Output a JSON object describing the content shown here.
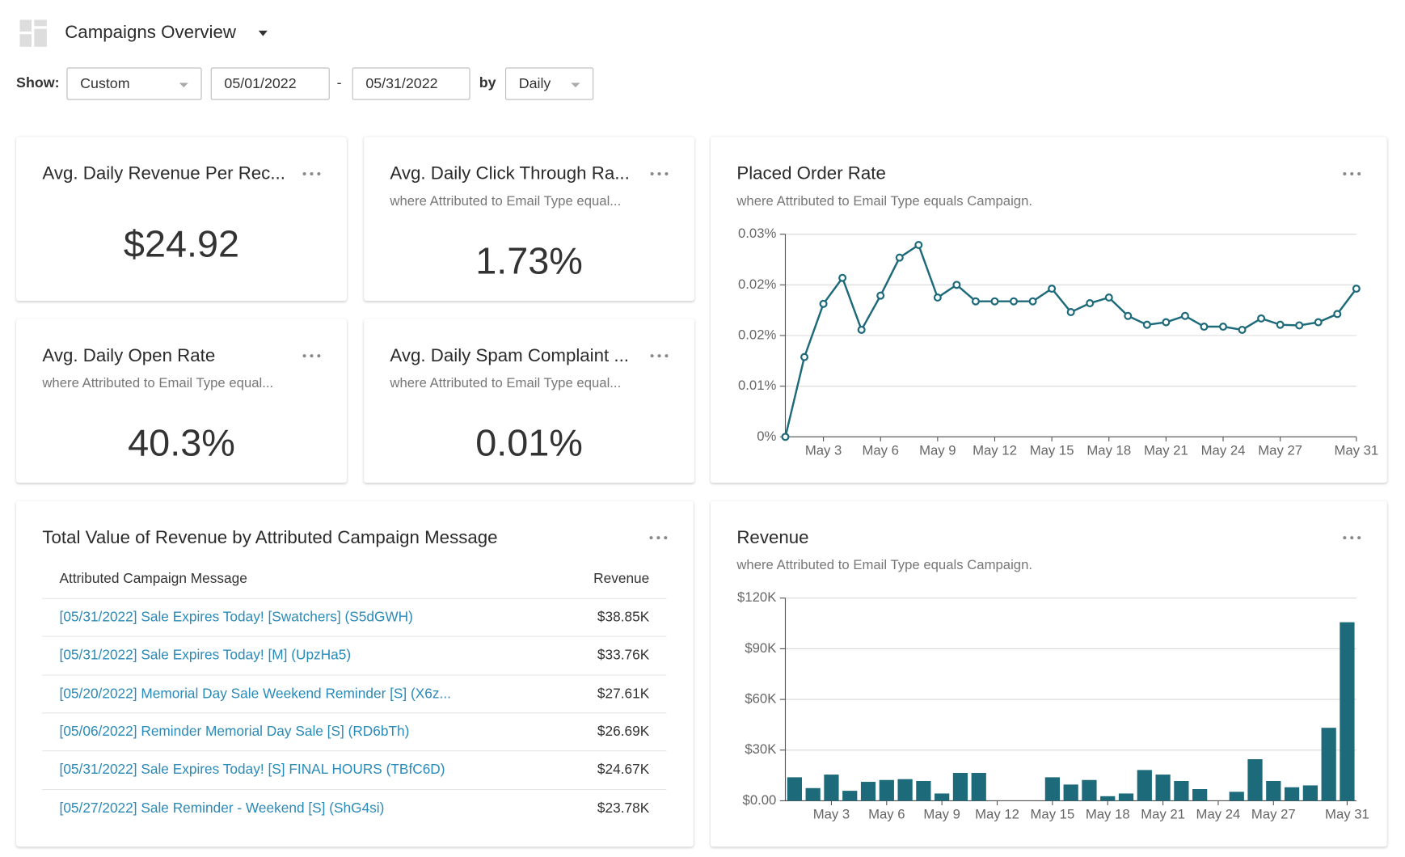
{
  "header": {
    "title": "Campaigns Overview"
  },
  "filters": {
    "show_label": "Show:",
    "range": "Custom",
    "start": "05/01/2022",
    "separator": "-",
    "end": "05/31/2022",
    "by_label": "by",
    "interval": "Daily"
  },
  "kpis": [
    {
      "title": "Avg. Daily Revenue Per Rec...",
      "value": "$24.92"
    },
    {
      "title": "Avg. Daily Click Through Ra...",
      "subtitle": "where Attributed to Email Type equal...",
      "value": "1.73%"
    },
    {
      "title": "Avg. Daily Open Rate",
      "subtitle": "where Attributed to Email Type equal...",
      "value": "40.3%"
    },
    {
      "title": "Avg. Daily Spam Complaint ...",
      "subtitle": "where Attributed to Email Type equal...",
      "value": "0.01%"
    }
  ],
  "table": {
    "title": "Total Value of Revenue by Attributed Campaign Message",
    "columns": [
      "Attributed Campaign Message",
      "Revenue"
    ],
    "rows": [
      [
        "[05/31/2022] Sale Expires Today! [Swatchers] (S5dGWH)",
        "$38.85K"
      ],
      [
        "[05/31/2022] Sale Expires Today! [M] (UpzHa5)",
        "$33.76K"
      ],
      [
        "[05/20/2022] Memorial Day Sale Weekend Reminder [S] (X6z...",
        "$27.61K"
      ],
      [
        "[05/06/2022] Reminder Memorial Day Sale [S] (RD6bTh)",
        "$26.69K"
      ],
      [
        "[05/31/2022] Sale Expires Today! [S] FINAL HOURS (TBfC6D)",
        "$24.67K"
      ],
      [
        "[05/27/2022] Sale Reminder - Weekend [S] (ShG4si)",
        "$23.78K"
      ]
    ]
  },
  "chart_data": [
    {
      "type": "line",
      "title": "Placed Order Rate",
      "subtitle": "where Attributed to Email Type equals Campaign.",
      "categories": [
        null,
        null,
        "May 3",
        null,
        null,
        "May 6",
        null,
        null,
        "May 9",
        null,
        null,
        "May 12",
        null,
        null,
        "May 15",
        null,
        null,
        "May 18",
        null,
        null,
        "May 21",
        null,
        null,
        "May 24",
        null,
        null,
        "May 27",
        null,
        null,
        null,
        "May 31"
      ],
      "values": [
        0,
        0.0126,
        0.021,
        0.0251,
        0.0169,
        0.0223,
        0.0283,
        0.0303,
        0.022,
        0.024,
        0.0214,
        0.0214,
        0.0214,
        0.0214,
        0.0234,
        0.0197,
        0.0211,
        0.022,
        0.0191,
        0.0177,
        0.0181,
        0.0191,
        0.0174,
        0.0174,
        0.0169,
        0.0187,
        0.0177,
        0.0176,
        0.0181,
        0.0194,
        0.0234
      ],
      "color": "#1d6a7a",
      "ylim": [
        0,
        0.032
      ],
      "yticks": [
        {
          "value": 0,
          "label": "0%"
        },
        {
          "value": 0.008,
          "label": "0.01%"
        },
        {
          "value": 0.016,
          "label": "0.02%"
        },
        {
          "value": 0.024,
          "label": "0.02%"
        },
        {
          "value": 0.032,
          "label": "0.03%"
        }
      ],
      "grid": true
    },
    {
      "type": "bar",
      "title": "Revenue",
      "subtitle": "where Attributed to Email Type equals Campaign.",
      "categories": [
        null,
        null,
        "May 3",
        null,
        null,
        "May 6",
        null,
        null,
        "May 9",
        null,
        null,
        "May 12",
        null,
        null,
        "May 15",
        null,
        null,
        "May 18",
        null,
        null,
        "May 21",
        null,
        null,
        "May 24",
        null,
        null,
        "May 27",
        null,
        null,
        null,
        "May 31"
      ],
      "values": [
        13900,
        7500,
        15500,
        5900,
        11200,
        12300,
        12800,
        11700,
        4300,
        16500,
        16500,
        0,
        0,
        0,
        13900,
        9600,
        12300,
        2700,
        4300,
        18200,
        15500,
        11700,
        6900,
        0,
        5300,
        24600,
        11700,
        8000,
        9100,
        43200,
        105700
      ],
      "color": "#1d6a7a",
      "ylim": [
        0,
        120000
      ],
      "yticks": [
        {
          "value": 0,
          "label": "$0.00"
        },
        {
          "value": 30000,
          "label": "$30K"
        },
        {
          "value": 60000,
          "label": "$60K"
        },
        {
          "value": 90000,
          "label": "$90K"
        },
        {
          "value": 120000,
          "label": "$120K"
        }
      ],
      "grid": true
    }
  ]
}
